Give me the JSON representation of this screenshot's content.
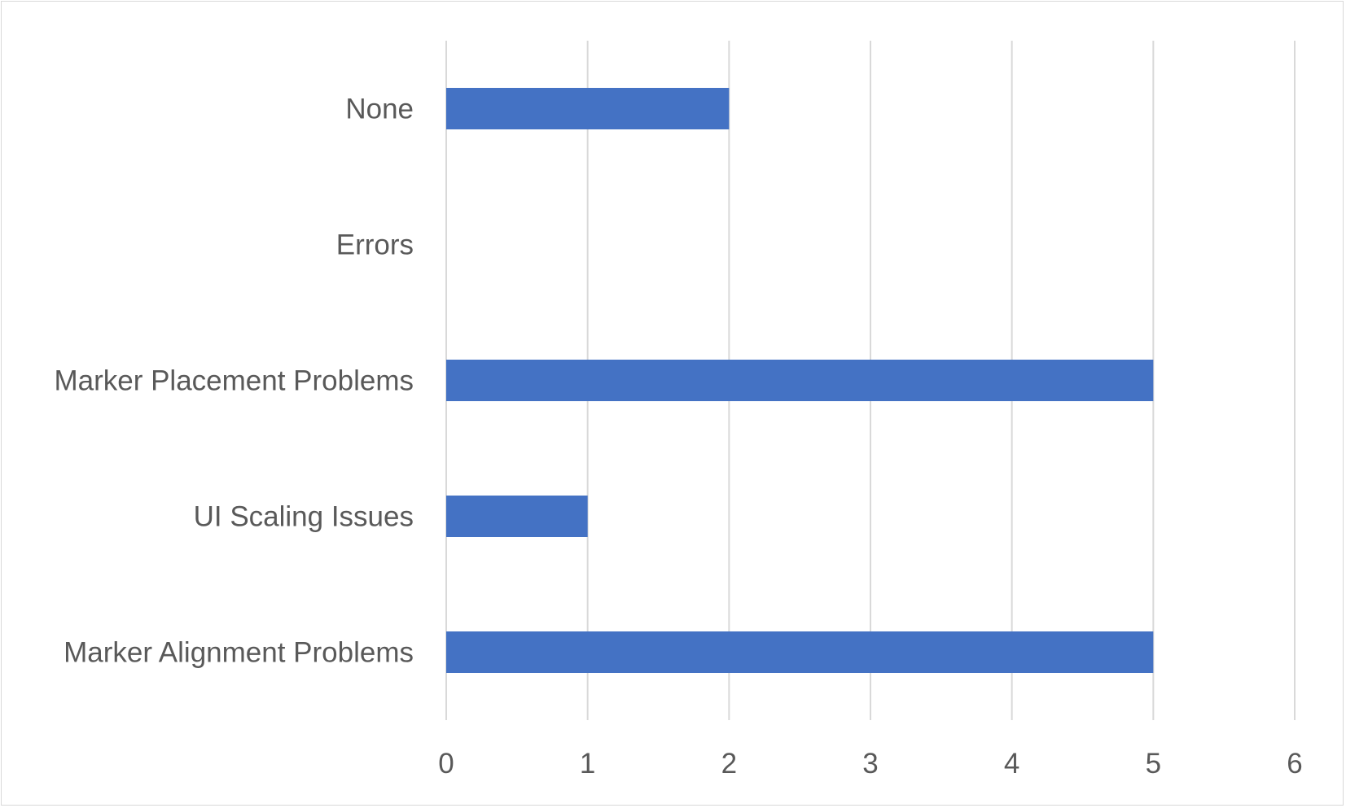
{
  "chart_data": {
    "type": "bar",
    "orientation": "horizontal",
    "title": "",
    "xlabel": "",
    "ylabel": "",
    "categories": [
      "None",
      "Errors",
      "Marker Placement Problems",
      "UI Scaling Issues",
      "Marker Alignment Problems"
    ],
    "values": [
      2,
      0,
      5,
      1,
      5
    ],
    "xlim": [
      0,
      6
    ],
    "xticks": [
      "0",
      "1",
      "2",
      "3",
      "4",
      "5",
      "6"
    ],
    "grid": "vertical",
    "legend": "none",
    "colors": {
      "bar": "#4472c4",
      "grid": "#d9d9d9",
      "text": "#595959",
      "border": "#d9d9d9"
    }
  }
}
